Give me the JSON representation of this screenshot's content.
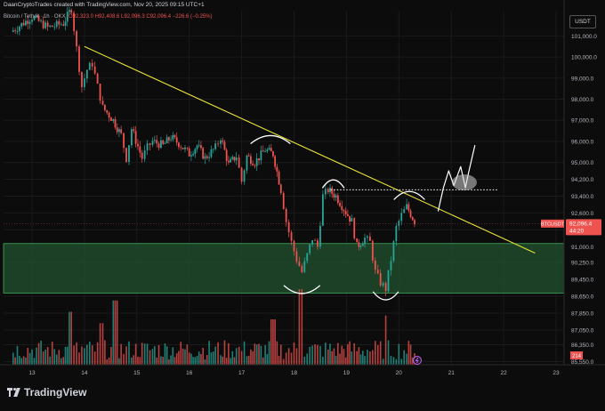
{
  "header": {
    "credit": "DaanCryptoTrades created with TradingView.com, Nov 20, 2025 09:15 UTC+1",
    "symbol_line": "Bitcoin / Tether · 1h · OKX",
    "ohlc": {
      "o": "O92,323.0",
      "h": "H92,408.6",
      "l": "L92,096.3",
      "c": "C92,096.4",
      "change": "−226.6 (−0.25%)"
    }
  },
  "currency_button": "USDT",
  "price_tag": {
    "symbol": "BTCUSDT",
    "price": "92,096.4",
    "timer": "44:20"
  },
  "volume_tag": "214",
  "brand": "TradingView",
  "colors": {
    "up": "#26a69a",
    "down": "#ef5350",
    "trendline": "#e8e337",
    "zone_fill": "#1f4a2b",
    "zone_border": "#3fae5a",
    "background": "#0c0c0c"
  },
  "chart_data": {
    "type": "candlestick",
    "ylim": [
      85400,
      102200
    ],
    "yticks": [
      "101,000.0",
      "100,000.0",
      "99,000.0",
      "98,000.0",
      "97,000.0",
      "96,000.0",
      "95,000.0",
      "94,200.0",
      "93,400.0",
      "92,600.0",
      "91,800.0",
      "91,000.0",
      "90,250.0",
      "89,450.0",
      "88,650.0",
      "87,850.0",
      "87,050.0",
      "86,350.0",
      "85,550.0"
    ],
    "xticks": [
      "13",
      "14",
      "15",
      "16",
      "17",
      "18",
      "19",
      "20",
      "21",
      "22",
      "23"
    ],
    "ohlc_path": [
      [
        12.6,
        101200
      ],
      [
        13.0,
        101900
      ],
      [
        13.3,
        101400
      ],
      [
        13.6,
        101600
      ],
      [
        13.75,
        102300
      ],
      [
        13.85,
        100400
      ],
      [
        13.95,
        98600
      ],
      [
        14.05,
        99400
      ],
      [
        14.15,
        99700
      ],
      [
        14.25,
        98600
      ],
      [
        14.35,
        97600
      ],
      [
        14.55,
        97000
      ],
      [
        14.7,
        96300
      ],
      [
        14.8,
        95200
      ],
      [
        14.9,
        96600
      ],
      [
        15.1,
        95200
      ],
      [
        15.2,
        95700
      ],
      [
        15.3,
        96000
      ],
      [
        15.5,
        95800
      ],
      [
        15.65,
        96200
      ],
      [
        15.8,
        95900
      ],
      [
        16.0,
        95400
      ],
      [
        16.15,
        95800
      ],
      [
        16.3,
        95200
      ],
      [
        16.5,
        95700
      ],
      [
        16.6,
        96200
      ],
      [
        16.75,
        94900
      ],
      [
        16.9,
        95300
      ],
      [
        17.0,
        94100
      ],
      [
        17.1,
        95300
      ],
      [
        17.25,
        95000
      ],
      [
        17.45,
        95600
      ],
      [
        17.6,
        95400
      ],
      [
        17.75,
        93700
      ],
      [
        17.85,
        92200
      ],
      [
        17.95,
        91200
      ],
      [
        18.05,
        90400
      ],
      [
        18.15,
        89800
      ],
      [
        18.25,
        90600
      ],
      [
        18.35,
        91400
      ],
      [
        18.45,
        91000
      ],
      [
        18.55,
        93400
      ],
      [
        18.65,
        93700
      ],
      [
        18.8,
        93400
      ],
      [
        18.95,
        92800
      ],
      [
        19.1,
        92200
      ],
      [
        19.2,
        91000
      ],
      [
        19.35,
        91400
      ],
      [
        19.45,
        91200
      ],
      [
        19.55,
        89800
      ],
      [
        19.65,
        89300
      ],
      [
        19.75,
        89000
      ],
      [
        19.85,
        90400
      ],
      [
        19.95,
        91900
      ],
      [
        20.05,
        92500
      ],
      [
        20.15,
        92900
      ],
      [
        20.3,
        92200
      ]
    ],
    "volume_profile": [
      [
        13.75,
        0.7
      ],
      [
        14.3,
        0.55
      ],
      [
        14.6,
        0.85
      ],
      [
        17.6,
        0.6
      ],
      [
        18.15,
        1.0
      ],
      [
        19.75,
        0.65
      ]
    ],
    "trendline": {
      "from": [
        14.0,
        100500
      ],
      "to": [
        22.6,
        90700
      ]
    },
    "support_zone": [
      88800,
      91150
    ],
    "resistance_dotted": {
      "price": 93700,
      "from": 18.7,
      "to": 21.9
    },
    "current_price": 92096.4
  }
}
